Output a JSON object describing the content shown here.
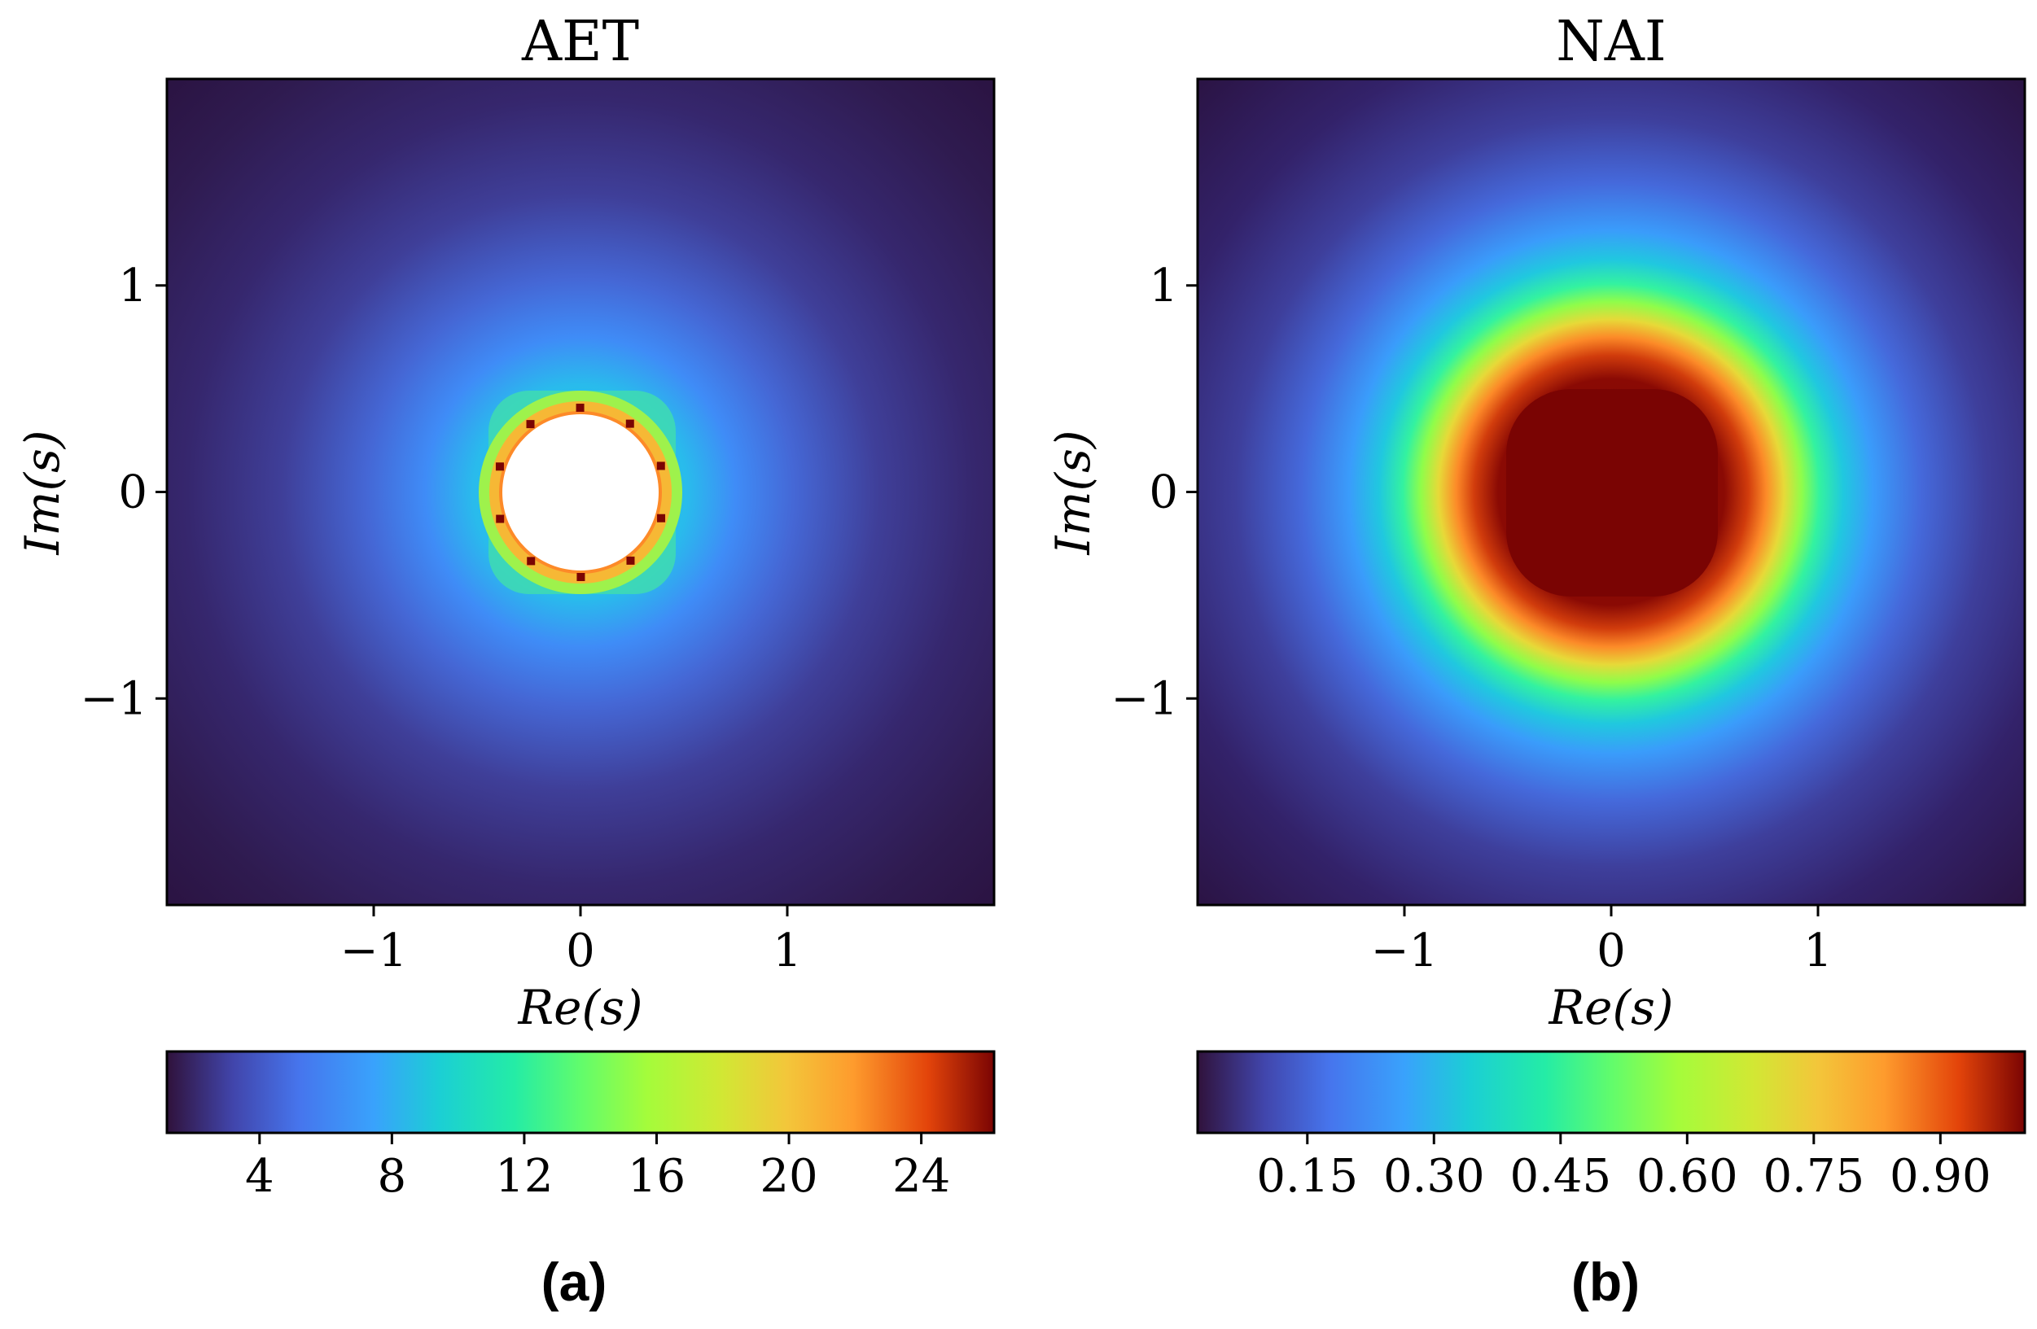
{
  "chart_data": [
    {
      "type": "heatmap",
      "panel_label": "(a)",
      "title": "AET",
      "xlabel": "Re(s)",
      "ylabel": "Im(s)",
      "xlim": [
        -2,
        2
      ],
      "ylim": [
        -2,
        2
      ],
      "xticks": [
        -1,
        0,
        1
      ],
      "xtick_labels": [
        "−1",
        "0",
        "1"
      ],
      "yticks": [
        1,
        0,
        -1
      ],
      "ytick_labels": [
        "1",
        "0",
        "−1"
      ],
      "colormap": "turbo",
      "colorbar": {
        "orientation": "horizontal",
        "range": [
          1.2,
          26.2
        ],
        "ticks": [
          4,
          8,
          12,
          16,
          20,
          24
        ],
        "tick_labels": [
          "4",
          "8",
          "12",
          "16",
          "20",
          "24"
        ]
      },
      "features": {
        "center_hole_radius": 0.38,
        "hole_color": "#ffffff"
      }
    },
    {
      "type": "heatmap",
      "panel_label": "(b)",
      "title": "NAI",
      "xlabel": "Re(s)",
      "ylabel": "Im(s)",
      "xlim": [
        -2,
        2
      ],
      "ylim": [
        -2,
        2
      ],
      "xticks": [
        -1,
        0,
        1
      ],
      "xtick_labels": [
        "−1",
        "0",
        "1"
      ],
      "yticks": [
        1,
        0,
        -1
      ],
      "ytick_labels": [
        "1",
        "0",
        "−1"
      ],
      "colormap": "turbo",
      "colorbar": {
        "orientation": "horizontal",
        "range": [
          0.02,
          1.0
        ],
        "ticks": [
          0.15,
          0.3,
          0.45,
          0.6,
          0.75,
          0.9
        ],
        "tick_labels": [
          "0.15",
          "0.30",
          "0.45",
          "0.60",
          "0.75",
          "0.90"
        ]
      }
    }
  ]
}
